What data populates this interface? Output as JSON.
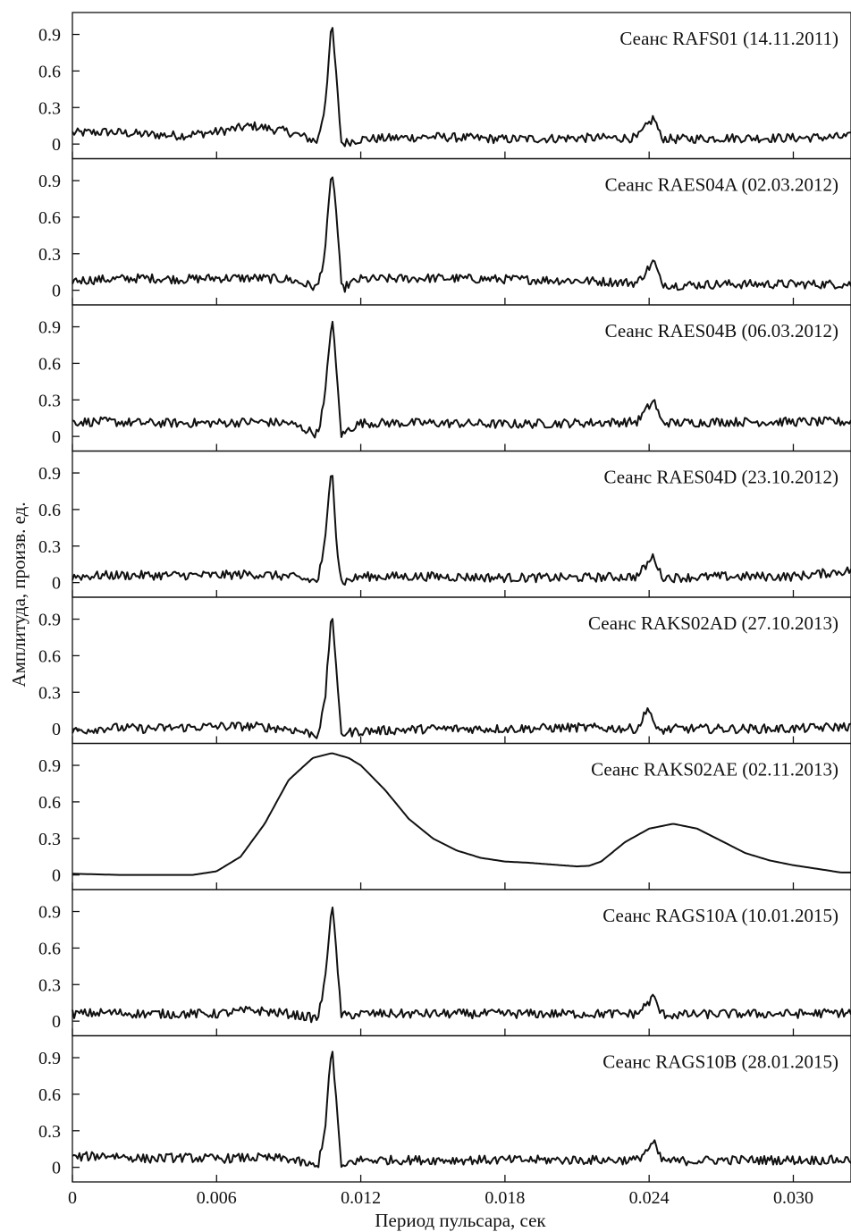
{
  "chart_data": {
    "type": "line",
    "xlabel": "Период пульсара, сек",
    "ylabel": "Амплитуда, произв. ед.",
    "xlim": [
      0,
      0.0324
    ],
    "ylim": [
      -0.12,
      1.08
    ],
    "x_ticks": [
      0,
      0.006,
      0.012,
      0.018,
      0.024,
      0.03
    ],
    "x_tick_labels": [
      "0",
      "0.006",
      "0.012",
      "0.018",
      "0.024",
      "0.030"
    ],
    "y_ticks": [
      0,
      0.3,
      0.6,
      0.9
    ],
    "y_tick_labels": [
      "0",
      "0.3",
      "0.6",
      "0.9"
    ],
    "panels": [
      {
        "title": "Сеанс RAFS01 (14.11.2011)",
        "kind": "noisy",
        "x": [
          0,
          0.0015,
          0.003,
          0.0045,
          0.006,
          0.0075,
          0.009,
          0.0102,
          0.0105,
          0.0108,
          0.011,
          0.0112,
          0.0115,
          0.012,
          0.015,
          0.018,
          0.021,
          0.0235,
          0.0242,
          0.0245,
          0.025,
          0.027,
          0.03,
          0.0324
        ],
        "y": [
          0.09,
          0.1,
          0.08,
          0.07,
          0.1,
          0.15,
          0.1,
          0.02,
          0.3,
          1.0,
          0.5,
          0.0,
          0.02,
          0.04,
          0.06,
          0.04,
          0.05,
          0.05,
          0.22,
          0.05,
          0.04,
          0.05,
          0.05,
          0.06
        ]
      },
      {
        "title": "Сеанс RAES04A (02.03.2012)",
        "kind": "noisy",
        "x": [
          0,
          0.0015,
          0.003,
          0.0045,
          0.006,
          0.0075,
          0.009,
          0.0102,
          0.0105,
          0.0108,
          0.011,
          0.0112,
          0.0115,
          0.012,
          0.015,
          0.018,
          0.021,
          0.0235,
          0.0242,
          0.0245,
          0.025,
          0.027,
          0.03,
          0.0324
        ],
        "y": [
          0.08,
          0.09,
          0.1,
          0.09,
          0.1,
          0.1,
          0.09,
          0.02,
          0.3,
          1.0,
          0.6,
          0.0,
          0.05,
          0.09,
          0.1,
          0.09,
          0.08,
          0.06,
          0.24,
          0.06,
          0.04,
          0.05,
          0.05,
          0.05
        ]
      },
      {
        "title": "Сеанс RAES04B (06.03.2012)",
        "kind": "noisy",
        "x": [
          0,
          0.0015,
          0.003,
          0.0045,
          0.006,
          0.0075,
          0.009,
          0.0102,
          0.0105,
          0.0108,
          0.011,
          0.0112,
          0.0115,
          0.012,
          0.015,
          0.018,
          0.021,
          0.0235,
          0.0242,
          0.0245,
          0.025,
          0.027,
          0.03,
          0.0324
        ],
        "y": [
          0.12,
          0.12,
          0.11,
          0.11,
          0.11,
          0.12,
          0.11,
          0.02,
          0.3,
          1.0,
          0.5,
          0.0,
          0.06,
          0.11,
          0.11,
          0.1,
          0.11,
          0.12,
          0.3,
          0.12,
          0.11,
          0.12,
          0.12,
          0.12
        ]
      },
      {
        "title": "Сеанс RAES04D (23.10.2012)",
        "kind": "noisy",
        "x": [
          0,
          0.0015,
          0.003,
          0.0045,
          0.006,
          0.0075,
          0.009,
          0.0102,
          0.0105,
          0.0108,
          0.011,
          0.0112,
          0.0115,
          0.012,
          0.015,
          0.018,
          0.021,
          0.0235,
          0.0242,
          0.0245,
          0.025,
          0.027,
          0.03,
          0.0324
        ],
        "y": [
          0.05,
          0.06,
          0.06,
          0.06,
          0.06,
          0.07,
          0.05,
          0.01,
          0.3,
          1.0,
          0.3,
          0.0,
          0.02,
          0.05,
          0.05,
          0.04,
          0.04,
          0.05,
          0.22,
          0.05,
          0.04,
          0.05,
          0.05,
          0.1
        ]
      },
      {
        "title": "Сеанс RAKS02AD (27.10.2013)",
        "kind": "noisy",
        "x": [
          0,
          0.0015,
          0.003,
          0.0045,
          0.006,
          0.0075,
          0.009,
          0.0102,
          0.0105,
          0.0108,
          0.011,
          0.0112,
          0.0115,
          0.012,
          0.015,
          0.018,
          0.021,
          0.0235,
          0.024,
          0.0243,
          0.025,
          0.027,
          0.03,
          0.0324
        ],
        "y": [
          -0.02,
          0.01,
          0.0,
          0.01,
          0.02,
          0.02,
          0.0,
          -0.05,
          0.2,
          1.0,
          0.4,
          -0.04,
          -0.03,
          -0.02,
          0.0,
          0.0,
          0.01,
          0.0,
          0.18,
          -0.02,
          0.0,
          0.0,
          0.0,
          0.02
        ]
      },
      {
        "title": "Сеанс RAKS02AE (02.11.2013)",
        "kind": "smooth",
        "x": [
          0,
          0.002,
          0.004,
          0.005,
          0.006,
          0.007,
          0.008,
          0.009,
          0.01,
          0.0108,
          0.0115,
          0.012,
          0.013,
          0.014,
          0.015,
          0.016,
          0.017,
          0.018,
          0.019,
          0.02,
          0.021,
          0.0215,
          0.022,
          0.023,
          0.024,
          0.025,
          0.026,
          0.027,
          0.028,
          0.029,
          0.03,
          0.031,
          0.032,
          0.0324
        ],
        "y": [
          0.01,
          0.0,
          0.0,
          0.0,
          0.03,
          0.15,
          0.42,
          0.78,
          0.96,
          1.0,
          0.96,
          0.9,
          0.7,
          0.46,
          0.3,
          0.2,
          0.14,
          0.11,
          0.1,
          0.085,
          0.07,
          0.075,
          0.11,
          0.27,
          0.38,
          0.42,
          0.38,
          0.28,
          0.18,
          0.12,
          0.08,
          0.05,
          0.02,
          0.02
        ]
      },
      {
        "title": "Сеанс RAGS10A (10.01.2015)",
        "kind": "noisy",
        "x": [
          0,
          0.0015,
          0.003,
          0.0045,
          0.006,
          0.0075,
          0.009,
          0.0102,
          0.0105,
          0.0108,
          0.011,
          0.0112,
          0.0115,
          0.012,
          0.015,
          0.018,
          0.021,
          0.0235,
          0.0242,
          0.0245,
          0.025,
          0.027,
          0.03,
          0.0324
        ],
        "y": [
          0.06,
          0.07,
          0.06,
          0.06,
          0.06,
          0.09,
          0.06,
          0.02,
          0.3,
          1.0,
          0.5,
          0.04,
          0.05,
          0.06,
          0.06,
          0.06,
          0.06,
          0.06,
          0.2,
          0.06,
          0.05,
          0.06,
          0.06,
          0.07
        ]
      },
      {
        "title": "Сеанс RAGS10B (28.01.2015)",
        "kind": "noisy",
        "x": [
          0,
          0.0015,
          0.003,
          0.0045,
          0.006,
          0.0075,
          0.009,
          0.0102,
          0.0105,
          0.0108,
          0.011,
          0.0112,
          0.0115,
          0.012,
          0.015,
          0.018,
          0.021,
          0.0235,
          0.0242,
          0.0245,
          0.025,
          0.027,
          0.03,
          0.0324
        ],
        "y": [
          0.08,
          0.1,
          0.07,
          0.08,
          0.07,
          0.08,
          0.07,
          0.0,
          0.3,
          1.0,
          0.5,
          -0.03,
          0.04,
          0.06,
          0.06,
          0.06,
          0.06,
          0.06,
          0.2,
          0.06,
          0.05,
          0.06,
          0.06,
          0.06
        ]
      }
    ]
  }
}
